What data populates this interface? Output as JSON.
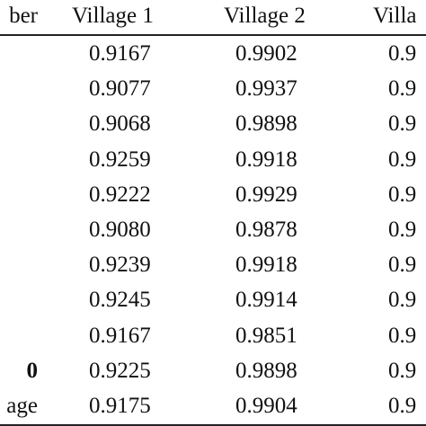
{
  "table": {
    "headers": [
      "ber",
      "Village 1",
      "Village 2",
      "Villa"
    ],
    "rows": [
      {
        "label": "",
        "v1": "0.9167",
        "v2": "0.9902",
        "v3": "0.9"
      },
      {
        "label": "",
        "v1": "0.9077",
        "v2": "0.9937",
        "v3": "0.9"
      },
      {
        "label": "",
        "v1": "0.9068",
        "v2": "0.9898",
        "v3": "0.9"
      },
      {
        "label": "",
        "v1": "0.9259",
        "v2": "0.9918",
        "v3": "0.9"
      },
      {
        "label": "",
        "v1": "0.9222",
        "v2": "0.9929",
        "v3": "0.9"
      },
      {
        "label": "",
        "v1": "0.9080",
        "v2": "0.9878",
        "v3": "0.9"
      },
      {
        "label": "",
        "v1": "0.9239",
        "v2": "0.9918",
        "v3": "0.9"
      },
      {
        "label": "",
        "v1": "0.9245",
        "v2": "0.9914",
        "v3": "0.9"
      },
      {
        "label": "",
        "v1": "0.9167",
        "v2": "0.9851",
        "v3": "0.9"
      },
      {
        "label": "0",
        "v1": "0.9225",
        "v2": "0.9898",
        "v3": "0.9"
      },
      {
        "label": "age",
        "v1": "0.9175",
        "v2": "0.9904",
        "v3": "0.9"
      }
    ]
  }
}
